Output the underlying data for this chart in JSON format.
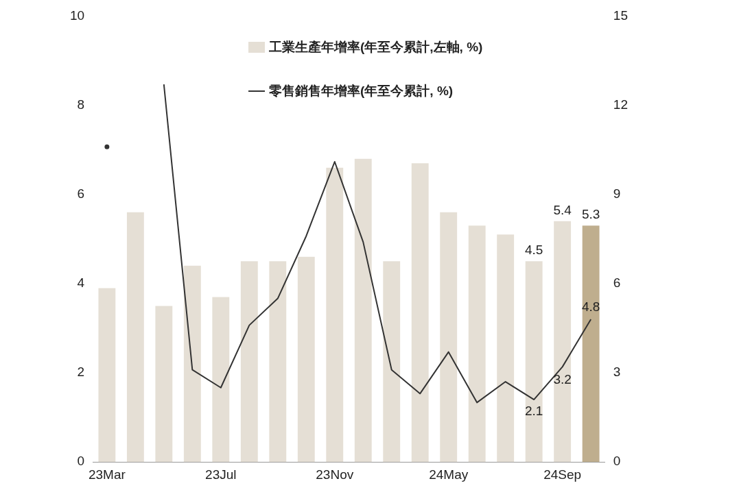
{
  "chart_data": {
    "type": "bar",
    "categories": [
      "23Mar",
      null,
      null,
      null,
      "23Jul",
      null,
      null,
      null,
      "23Nov",
      null,
      null,
      null,
      "24May",
      null,
      null,
      null,
      "24Sep",
      null
    ],
    "series": [
      {
        "name": "工業生產年增率(年至今累計,左軸, %)",
        "color": "#e5dfd5",
        "colors": [
          "#e5dfd5",
          "#e5dfd5",
          "#e5dfd5",
          "#e5dfd5",
          "#e5dfd5",
          "#e5dfd5",
          "#e5dfd5",
          "#e5dfd5",
          "#e5dfd5",
          "#e5dfd5",
          "#e5dfd5",
          "#e5dfd5",
          "#e5dfd5",
          "#e5dfd5",
          "#e5dfd5",
          "#e5dfd5",
          "#e5dfd5",
          "#bfae8e"
        ],
        "values": [
          3.9,
          5.6,
          3.5,
          4.4,
          3.7,
          4.5,
          4.5,
          4.6,
          6.6,
          6.8,
          4.5,
          6.7,
          5.6,
          5.3,
          5.1,
          4.5,
          5.4,
          5.3
        ],
        "value_labels": [
          null,
          null,
          null,
          null,
          null,
          null,
          null,
          null,
          null,
          null,
          null,
          null,
          null,
          null,
          null,
          "4.5",
          "5.4",
          "5.3"
        ]
      },
      {
        "type": "line",
        "axis": "y2",
        "name": "零售銷售年增率(年至今累計, %)",
        "color": "#333333",
        "values": [
          10.6,
          null,
          12.7,
          3.1,
          2.5,
          4.6,
          5.5,
          7.6,
          10.1,
          7.4,
          3.1,
          2.3,
          3.7,
          2.0,
          2.7,
          2.1,
          3.2,
          4.8
        ],
        "value_labels": [
          null,
          null,
          null,
          null,
          null,
          null,
          null,
          null,
          null,
          null,
          null,
          null,
          null,
          null,
          null,
          "2.1",
          "3.2",
          "4.8"
        ]
      }
    ],
    "ylim": [
      0,
      10
    ],
    "yticks": [
      0,
      2,
      4,
      6,
      8,
      10
    ],
    "y2lim": [
      0,
      15
    ],
    "y2ticks": [
      0,
      3,
      6,
      9,
      12,
      15
    ],
    "grid": false,
    "legend": "top",
    "marker": "none",
    "line_style": "solid"
  }
}
